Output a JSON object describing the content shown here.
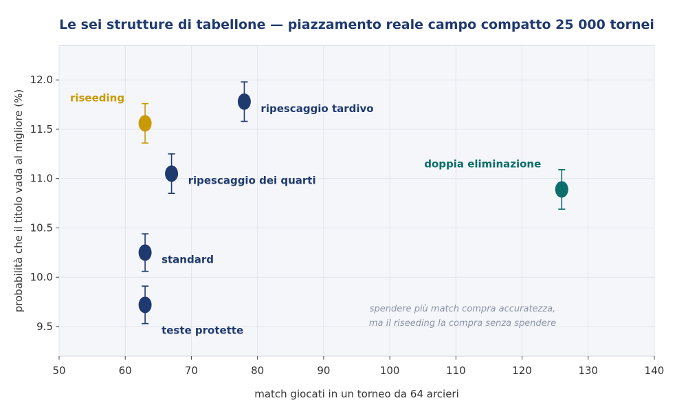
{
  "chart_data": {
    "type": "scatter",
    "title": "Le sei strutture di tabellone — piazzamento reale  campo compatto  25 000 tornei",
    "xlabel": "match giocati in un torneo da 64 arcieri",
    "ylabel": "probabilità che il titolo vada al migliore (%)",
    "xlim": [
      50,
      140
    ],
    "ylim": [
      9.2,
      12.35
    ],
    "xticks": [
      50,
      60,
      70,
      80,
      90,
      100,
      110,
      120,
      130,
      140
    ],
    "yticks": [
      9.5,
      10.0,
      10.5,
      11.0,
      11.5,
      12.0
    ],
    "grid": true,
    "points": [
      {
        "label": "riseeding",
        "x": 63,
        "y": 11.56,
        "err": 0.2,
        "color": "#c99a06",
        "label_pos": "upper-left"
      },
      {
        "label": "ripescaggio tardivo",
        "x": 78,
        "y": 11.78,
        "err": 0.2,
        "color": "#1f3a6e",
        "label_pos": "right"
      },
      {
        "label": "ripescaggio dei quarti",
        "x": 67,
        "y": 11.05,
        "err": 0.2,
        "color": "#1f3a6e",
        "label_pos": "right"
      },
      {
        "label": "doppia eliminazione",
        "x": 126,
        "y": 10.89,
        "err": 0.2,
        "color": "#0b6e6a",
        "label_pos": "upper-left"
      },
      {
        "label": "standard",
        "x": 63,
        "y": 10.25,
        "err": 0.19,
        "color": "#1f3a6e",
        "label_pos": "right"
      },
      {
        "label": "teste protette",
        "x": 63,
        "y": 9.72,
        "err": 0.19,
        "color": "#1f3a6e",
        "label_pos": "lower-right"
      }
    ],
    "annotation": [
      "spendere più match compra accuratezza,",
      "ma il riseeding la compra senza spendere"
    ]
  },
  "colors": {
    "plot_bg": "#f5f6fa",
    "grid": "#e2e5ec",
    "axis": "#cfd3dc"
  }
}
